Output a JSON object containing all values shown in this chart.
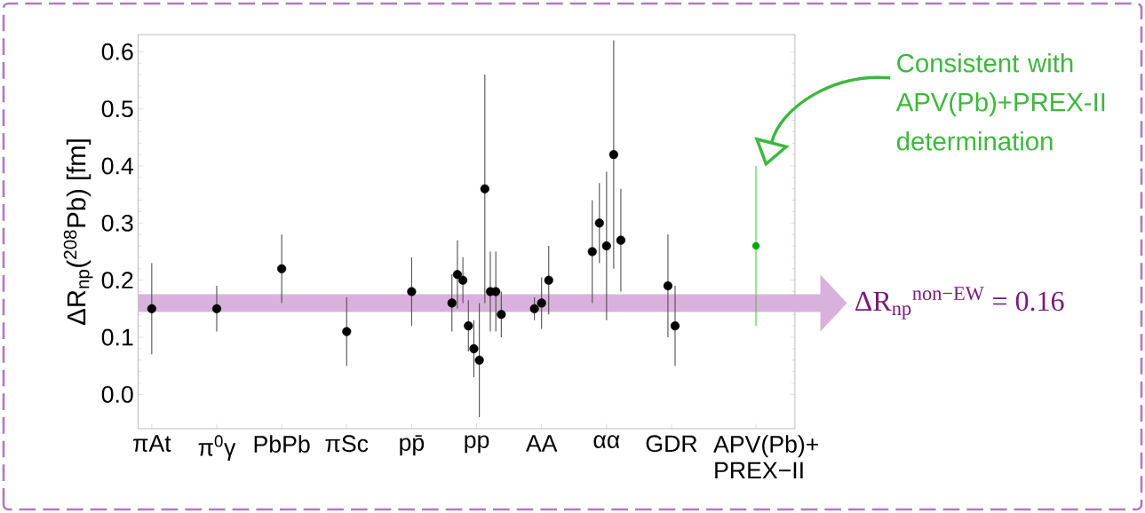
{
  "chart_data": {
    "type": "scatter",
    "ylabel": "ΔR$_{np}$($^{208}$Pb) [fm]",
    "categories": [
      "πAt",
      "π$^{0}$γ",
      "PbPb",
      "πSc",
      "pp̄",
      "pp",
      "AA",
      "αα",
      "GDR",
      "APV(Pb)+ PREX−II"
    ],
    "ylim": [
      -0.06,
      0.63
    ],
    "yticks": [
      {
        "value": 0,
        "label": "0.0"
      },
      0.1,
      0.2,
      0.3,
      0.4,
      0.5,
      0.6
    ],
    "marker": "circle",
    "series": [
      {
        "color": "#000000",
        "x": [
          "πAt",
          "π$^{0}$γ",
          "PbPb",
          "πSc",
          "pp̄",
          "pp",
          "pp",
          "pp",
          "pp",
          "pp",
          "pp",
          "pp",
          "pp",
          "pp",
          "pp",
          "AA",
          "AA",
          "AA",
          "αα",
          "αα",
          "αα",
          "αα",
          "αα",
          "GDR",
          "GDR"
        ],
        "values": [
          0.15,
          0.15,
          0.22,
          0.11,
          0.18,
          0.16,
          0.21,
          0.2,
          0.12,
          0.08,
          0.06,
          0.36,
          0.18,
          0.18,
          0.14,
          0.15,
          0.16,
          0.2,
          0.25,
          0.3,
          0.26,
          0.42,
          0.27,
          0.19,
          0.12
        ],
        "errors": [
          0.08,
          0.04,
          0.06,
          0.06,
          0.06,
          0.05,
          0.06,
          0.04,
          0.045,
          0.05,
          0.1,
          0.2,
          0.07,
          0.07,
          0.04,
          0.02,
          0.045,
          0.06,
          0.09,
          0.07,
          0.13,
          0.2,
          0.09,
          0.09,
          0.07
        ]
      },
      {
        "color": "#00aa00",
        "x": [
          "APV(Pb)+ PREX−II"
        ],
        "values": [
          0.26
        ],
        "errors": [
          0.14
        ]
      }
    ],
    "ref_lines": [
      {
        "axis": "y",
        "value": 0.16,
        "label": "ΔR$_{np}$$^{non−EW}$ = 0.16",
        "color": "#d8b2dc"
      }
    ],
    "annotations": [
      "Consistent with APV(Pb)+PREX-II determination"
    ]
  }
}
